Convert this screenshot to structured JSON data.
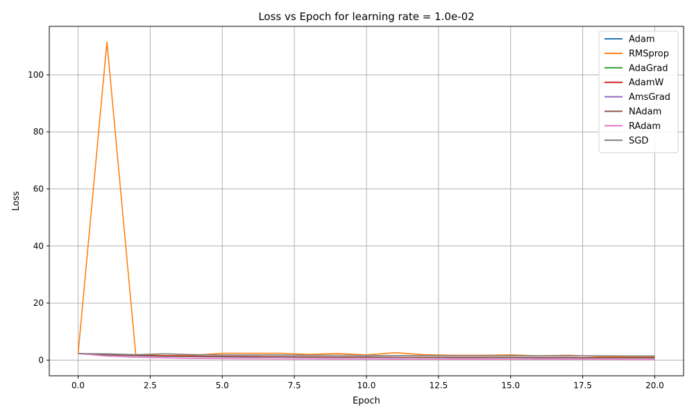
{
  "chart_data": {
    "type": "line",
    "title": "Loss vs Epoch for learning rate = 1.0e-02",
    "xlabel": "Epoch",
    "ylabel": "Loss",
    "xlim": [
      -1.0,
      21.0
    ],
    "ylim": [
      -5.5,
      117.0
    ],
    "xticks": [
      0.0,
      2.5,
      5.0,
      7.5,
      10.0,
      12.5,
      15.0,
      17.5,
      20.0
    ],
    "xtick_labels": [
      "0.0",
      "2.5",
      "5.0",
      "7.5",
      "10.0",
      "12.5",
      "15.0",
      "17.5",
      "20.0"
    ],
    "yticks": [
      0,
      20,
      40,
      60,
      80,
      100
    ],
    "ytick_labels": [
      "0",
      "20",
      "40",
      "60",
      "80",
      "100"
    ],
    "grid": true,
    "legend_position": "top-right",
    "x": [
      0,
      1,
      2,
      3,
      4,
      5,
      6,
      7,
      8,
      9,
      10,
      11,
      12,
      13,
      14,
      15,
      16,
      17,
      18,
      19,
      20
    ],
    "series": [
      {
        "name": "Adam",
        "color": "#1f77b4",
        "values": [
          2.3,
          1.9,
          1.7,
          1.5,
          1.4,
          1.3,
          1.25,
          1.2,
          1.15,
          1.1,
          1.05,
          1.0,
          1.0,
          0.95,
          0.95,
          0.9,
          0.9,
          0.9,
          0.85,
          0.85,
          0.85
        ]
      },
      {
        "name": "RMSprop",
        "color": "#ff7f0e",
        "values": [
          2.3,
          111.5,
          1.9,
          1.6,
          1.7,
          2.4,
          2.4,
          2.4,
          2.0,
          2.3,
          1.8,
          2.6,
          1.9,
          1.7,
          1.7,
          1.8,
          1.5,
          1.7,
          1.3,
          1.2,
          1.2
        ]
      },
      {
        "name": "AdaGrad",
        "color": "#2ca02c",
        "values": [
          2.3,
          1.9,
          1.6,
          1.4,
          1.3,
          1.2,
          1.15,
          1.1,
          1.05,
          1.0,
          1.0,
          0.95,
          0.95,
          0.9,
          0.9,
          0.9,
          0.85,
          0.85,
          0.85,
          0.8,
          0.8
        ]
      },
      {
        "name": "AdamW",
        "color": "#d62728",
        "values": [
          2.3,
          1.9,
          1.7,
          1.5,
          1.4,
          1.3,
          1.25,
          1.2,
          1.15,
          1.1,
          1.05,
          1.0,
          1.0,
          0.95,
          0.95,
          0.9,
          0.9,
          0.9,
          0.85,
          0.85,
          0.85
        ]
      },
      {
        "name": "AmsGrad",
        "color": "#9467bd",
        "values": [
          2.3,
          1.8,
          1.5,
          1.3,
          1.2,
          1.1,
          1.0,
          1.0,
          0.95,
          0.9,
          0.9,
          0.85,
          0.85,
          0.8,
          0.8,
          0.8,
          0.75,
          0.75,
          0.75,
          0.7,
          0.7
        ]
      },
      {
        "name": "NAdam",
        "color": "#8c564b",
        "values": [
          2.3,
          1.9,
          1.6,
          1.4,
          1.3,
          1.2,
          1.1,
          1.1,
          1.05,
          1.0,
          1.0,
          0.95,
          0.9,
          0.9,
          0.9,
          0.85,
          0.85,
          0.85,
          0.8,
          0.8,
          0.8
        ]
      },
      {
        "name": "RAdam",
        "color": "#e377c2",
        "values": [
          2.3,
          1.4,
          1.0,
          0.8,
          0.6,
          0.5,
          0.45,
          0.4,
          0.4,
          0.35,
          0.35,
          0.3,
          0.3,
          0.3,
          0.3,
          0.25,
          0.25,
          0.25,
          0.25,
          0.2,
          0.2
        ]
      },
      {
        "name": "SGD",
        "color": "#7f7f7f",
        "values": [
          2.3,
          2.2,
          1.9,
          2.2,
          1.9,
          1.8,
          1.8,
          1.8,
          1.7,
          1.7,
          1.6,
          1.6,
          1.6,
          1.55,
          1.55,
          1.5,
          1.5,
          1.5,
          1.5,
          1.45,
          1.45
        ]
      }
    ]
  }
}
